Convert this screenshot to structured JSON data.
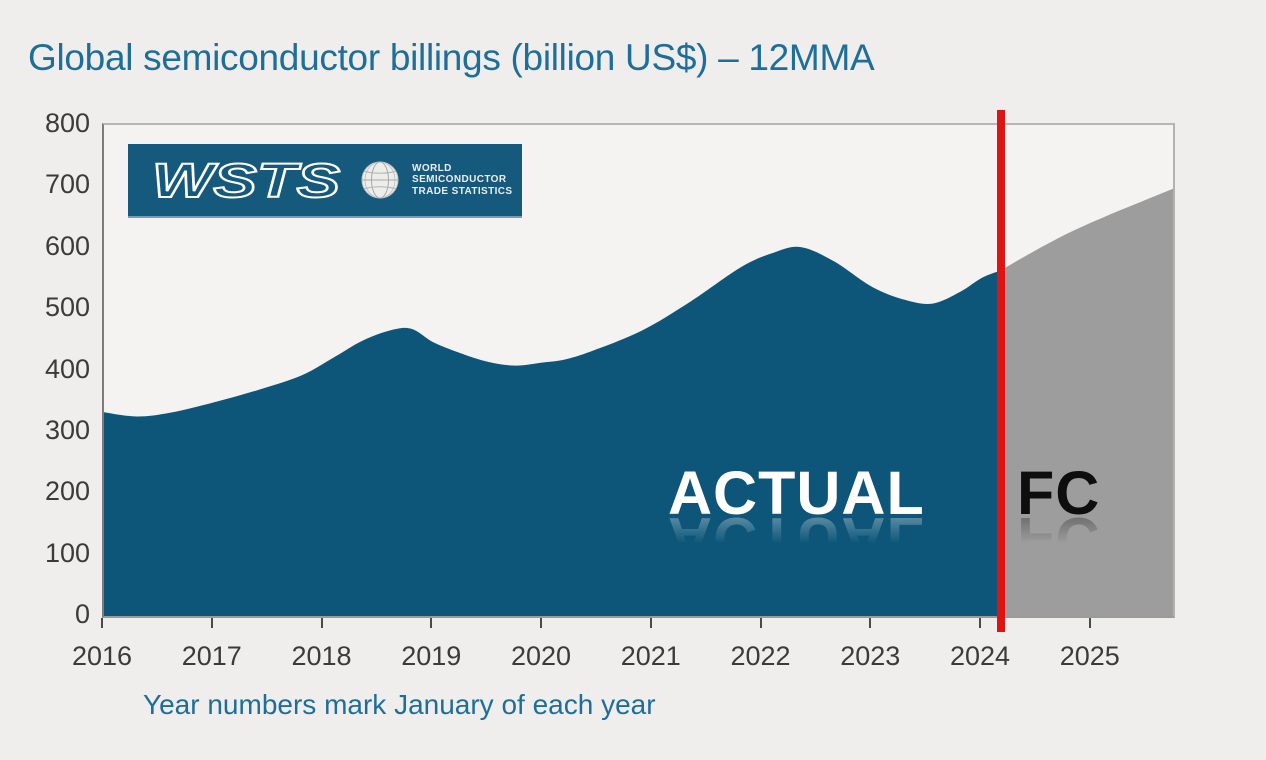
{
  "title": "Global semiconductor billings (billion US$) – 12MMA",
  "caption": "Year numbers mark January of each year",
  "logo": {
    "wordmark": "WSTS",
    "org_lines": [
      "WORLD",
      "SEMICONDUCTOR",
      "TRADE STATISTICS"
    ]
  },
  "annotations": {
    "actual": "ACTUAL",
    "forecast": "FC"
  },
  "colors": {
    "actual_fill": "#0d5679",
    "forecast_fill": "#9d9d9d",
    "divider_line": "#df1412",
    "heading_text": "#1d6e99",
    "axis_text": "#3b3b3b",
    "logo_bg": "#15597d"
  },
  "chart_data": {
    "type": "area",
    "title": "Global semiconductor billings (billion US$) – 12MMA",
    "xlabel": "Year numbers mark January of each year",
    "ylabel": "",
    "grid": false,
    "legend": false,
    "ylim": [
      0,
      800
    ],
    "y_ticks": [
      0,
      100,
      200,
      300,
      400,
      500,
      600,
      700,
      800
    ],
    "x_ticks": [
      2016,
      2017,
      2018,
      2019,
      2020,
      2021,
      2022,
      2023,
      2024,
      2025
    ],
    "x_range": [
      2016,
      2025.74
    ],
    "forecast_divider_x": 2024.17,
    "series": [
      {
        "name": "ACTUAL",
        "color": "#0d5679",
        "points": [
          [
            2016.0,
            332
          ],
          [
            2016.3,
            325
          ],
          [
            2016.6,
            331
          ],
          [
            2017.0,
            348
          ],
          [
            2017.4,
            368
          ],
          [
            2017.8,
            392
          ],
          [
            2018.1,
            422
          ],
          [
            2018.35,
            448
          ],
          [
            2018.6,
            465
          ],
          [
            2018.8,
            468
          ],
          [
            2019.0,
            446
          ],
          [
            2019.25,
            428
          ],
          [
            2019.5,
            414
          ],
          [
            2019.75,
            408
          ],
          [
            2020.0,
            413
          ],
          [
            2020.2,
            418
          ],
          [
            2020.45,
            432
          ],
          [
            2020.9,
            465
          ],
          [
            2021.35,
            513
          ],
          [
            2021.8,
            568
          ],
          [
            2022.1,
            592
          ],
          [
            2022.35,
            601
          ],
          [
            2022.65,
            578
          ],
          [
            2023.0,
            536
          ],
          [
            2023.3,
            515
          ],
          [
            2023.55,
            509
          ],
          [
            2023.8,
            528
          ],
          [
            2024.0,
            551
          ],
          [
            2024.17,
            563
          ]
        ]
      },
      {
        "name": "FC",
        "color": "#9d9d9d",
        "points": [
          [
            2024.17,
            563
          ],
          [
            2024.45,
            592
          ],
          [
            2024.8,
            625
          ],
          [
            2025.15,
            653
          ],
          [
            2025.45,
            675
          ],
          [
            2025.74,
            696
          ]
        ]
      }
    ]
  }
}
